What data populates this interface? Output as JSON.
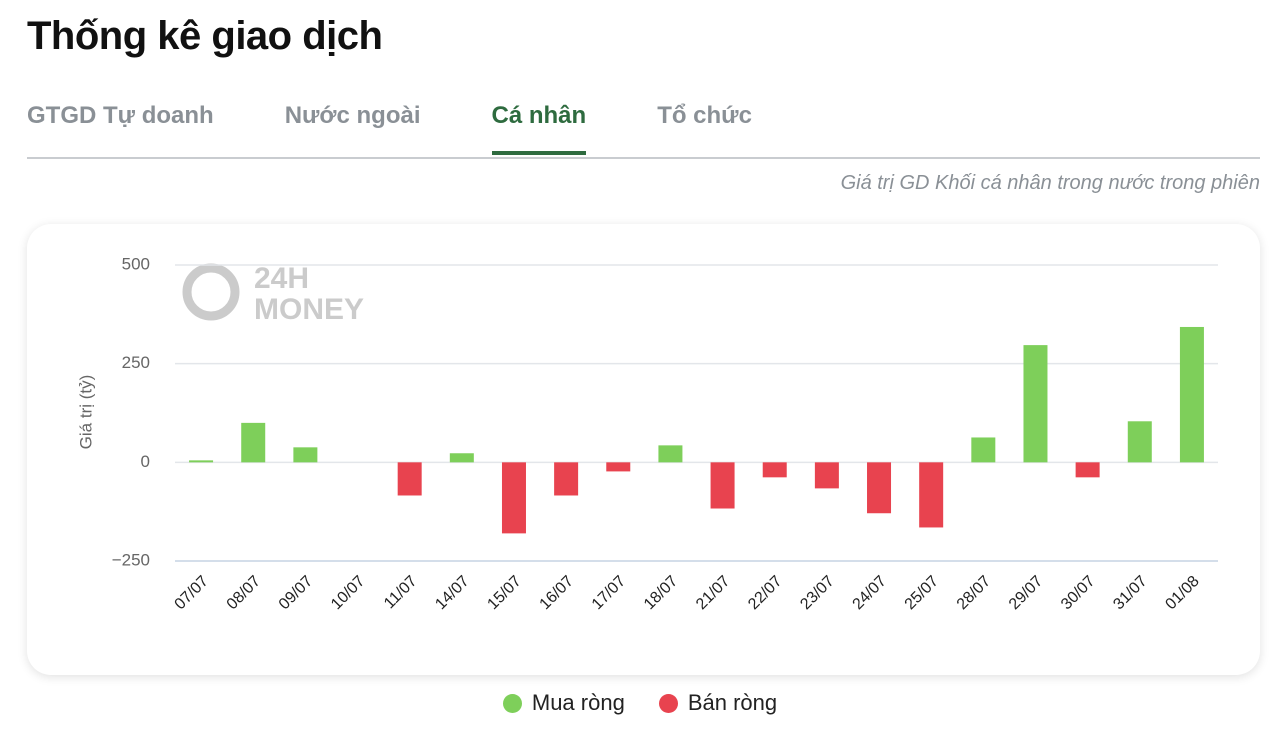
{
  "header": {
    "title": "Thống kê giao dịch"
  },
  "tabs": [
    "GTGD Tự doanh",
    "Nước ngoài",
    "Cá nhân",
    "Tổ chức"
  ],
  "active_tab": 2,
  "subtitle": "Giá trị GD Khối cá nhân trong nước trong phiên",
  "watermark": [
    "24H",
    "MONEY"
  ],
  "chart_data": {
    "type": "bar",
    "y_label": "Giá trị (tỷ)",
    "categories": [
      "07/07",
      "08/07",
      "09/07",
      "10/07",
      "11/07",
      "14/07",
      "15/07",
      "16/07",
      "17/07",
      "18/07",
      "21/07",
      "22/07",
      "23/07",
      "24/07",
      "25/07",
      "28/07",
      "29/07",
      "30/07",
      "31/07",
      "01/08"
    ],
    "series": [
      {
        "name": "Mua ròng",
        "color": "#7ecf5a",
        "values": [
          5,
          100,
          38,
          null,
          null,
          23,
          null,
          null,
          null,
          43,
          null,
          null,
          null,
          null,
          null,
          63,
          297,
          null,
          104,
          343
        ]
      },
      {
        "name": "Bán ròng",
        "color": "#e8434f",
        "values": [
          null,
          null,
          null,
          null,
          -84,
          null,
          -180,
          -84,
          -23,
          null,
          -117,
          -38,
          -66,
          -129,
          -165,
          null,
          null,
          -38,
          null,
          null
        ]
      }
    ],
    "ylim": [
      -250,
      500
    ],
    "yticks": [
      {
        "value": -250,
        "label": "−250"
      },
      0,
      250,
      500
    ],
    "grid": true
  }
}
